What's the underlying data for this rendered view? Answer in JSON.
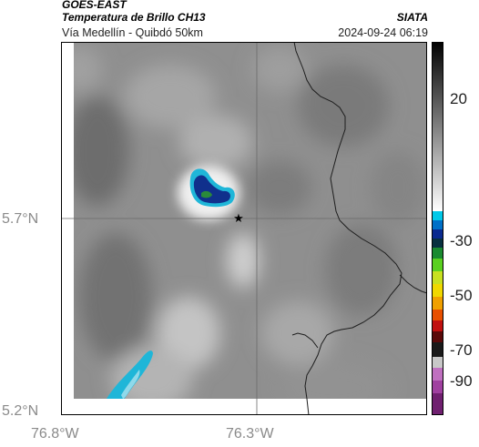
{
  "header": {
    "satellite": "GOES-EAST",
    "product": "Temperatura de Brillo CH13",
    "source": "SIATA",
    "area": "Vía Medellín - Quibdó 50km",
    "datetime": "2024-09-24 06:19"
  },
  "axes": {
    "y_ticks": [
      "5.7°N",
      "5.2°N"
    ],
    "x_ticks": [
      "76.8°W",
      "76.3°W"
    ]
  },
  "colorbar": {
    "labels": [
      "20",
      "-30",
      "-50",
      "-70",
      "-90"
    ]
  },
  "map": {
    "marker": "star-icon",
    "colors": {
      "background_gray": "#8f8f8f",
      "cold_cyan": "#1fb6d8",
      "cold_blue": "#10308c",
      "cold_green": "#2a8a3a",
      "border_line": "#1e1e1e"
    }
  }
}
